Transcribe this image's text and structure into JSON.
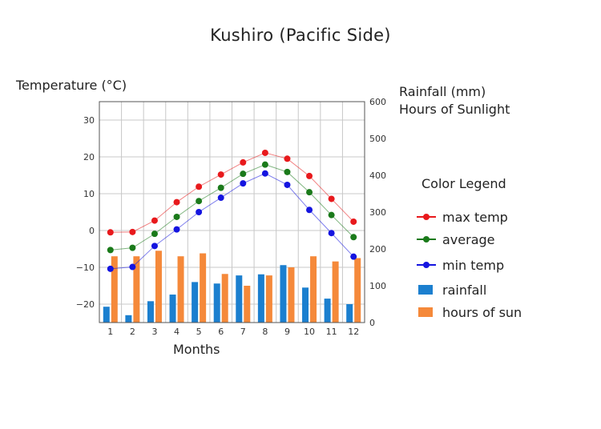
{
  "chart_data": {
    "type": "line+bar",
    "title": "Kushiro (Pacific Side)",
    "xlabel": "Months",
    "ylabel_left": "Temperature (°C)",
    "ylabel_right": [
      "Rainfall (mm)",
      "Hours of Sunlight"
    ],
    "categories": [
      "1",
      "2",
      "3",
      "4",
      "5",
      "6",
      "7",
      "8",
      "9",
      "10",
      "11",
      "12"
    ],
    "y_left": {
      "min": -25,
      "max": 35,
      "ticks": [
        "30",
        "20",
        "10",
        "0",
        "−10",
        "−20"
      ],
      "tick_values": [
        30,
        20,
        10,
        0,
        -10,
        -20
      ]
    },
    "y_right": {
      "min": 0,
      "max": 600,
      "ticks": [
        "600",
        "500",
        "400",
        "300",
        "200",
        "100",
        "0"
      ],
      "tick_values": [
        600,
        500,
        400,
        300,
        200,
        100,
        0
      ]
    },
    "grid": true,
    "legend": {
      "title": "Color Legend",
      "placement": "right",
      "items": [
        {
          "label": "max temp",
          "kind": "line",
          "color": "#e8191c"
        },
        {
          "label": "average",
          "kind": "line",
          "color": "#1a7a1a"
        },
        {
          "label": "min temp",
          "kind": "line",
          "color": "#1414e0"
        },
        {
          "label": "rainfall",
          "kind": "bar",
          "color": "#1b7fcf"
        },
        {
          "label": "hours of sun",
          "kind": "bar",
          "color": "#f5893a"
        }
      ]
    },
    "series": [
      {
        "name": "max temp",
        "kind": "line",
        "axis": "left",
        "color": "#e8191c",
        "values": [
          -0.5,
          -0.4,
          2.7,
          7.7,
          11.9,
          15.2,
          18.5,
          21.1,
          19.5,
          14.8,
          8.6,
          2.4
        ]
      },
      {
        "name": "average",
        "kind": "line",
        "axis": "left",
        "color": "#1a7a1a",
        "values": [
          -5.3,
          -4.7,
          -0.9,
          3.7,
          8.0,
          11.6,
          15.4,
          17.9,
          15.9,
          10.4,
          4.2,
          -1.8
        ]
      },
      {
        "name": "min temp",
        "kind": "line",
        "axis": "left",
        "color": "#1414e0",
        "values": [
          -10.4,
          -9.9,
          -4.2,
          0.3,
          5.0,
          8.9,
          12.8,
          15.5,
          12.4,
          5.6,
          -0.7,
          -7.1
        ]
      },
      {
        "name": "rainfall",
        "kind": "bar",
        "axis": "right",
        "color": "#1b7fcf",
        "values": [
          43,
          20,
          58,
          76,
          110,
          106,
          128,
          131,
          156,
          95,
          65,
          50
        ]
      },
      {
        "name": "hours of sun",
        "kind": "bar",
        "axis": "right",
        "color": "#f5893a",
        "values": [
          180,
          180,
          195,
          180,
          188,
          132,
          100,
          128,
          150,
          180,
          166,
          175
        ]
      }
    ]
  }
}
